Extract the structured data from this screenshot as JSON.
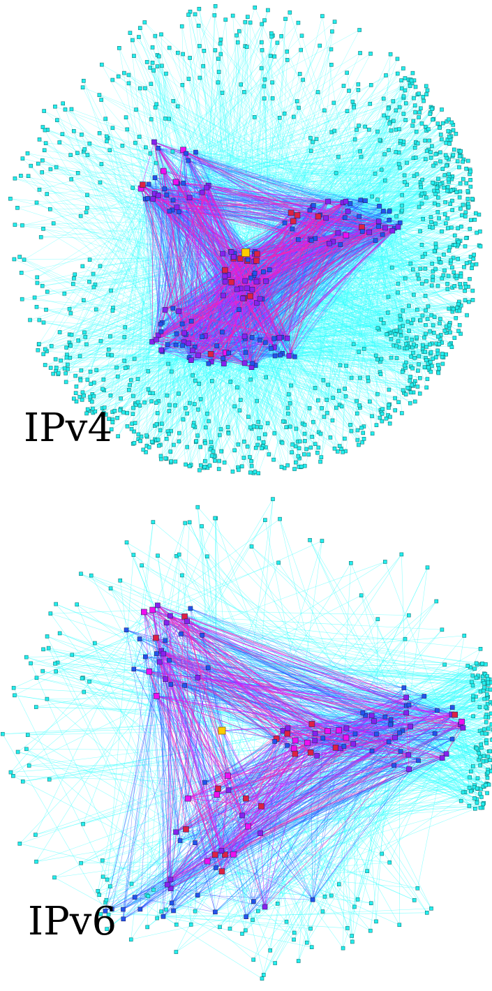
{
  "panels": [
    {
      "id": "ipv4",
      "label": "IPv4",
      "layout": "dense"
    },
    {
      "id": "ipv6",
      "label": "IPv6",
      "layout": "sparse"
    }
  ],
  "colors": {
    "background": "#ffffff",
    "edge_periphery": "#33ffff",
    "edge_mid": "#3355ff",
    "edge_inner": "#cc22ff",
    "edge_core": "#ff22aa",
    "node_periphery": "#22eeee",
    "node_border": "#117777",
    "node_mid": "#2255ee",
    "node_inner": "#8822ee",
    "node_core_magenta": "#ee11ee",
    "node_core_red": "#dd2244",
    "node_center": "#ffcc00"
  }
}
